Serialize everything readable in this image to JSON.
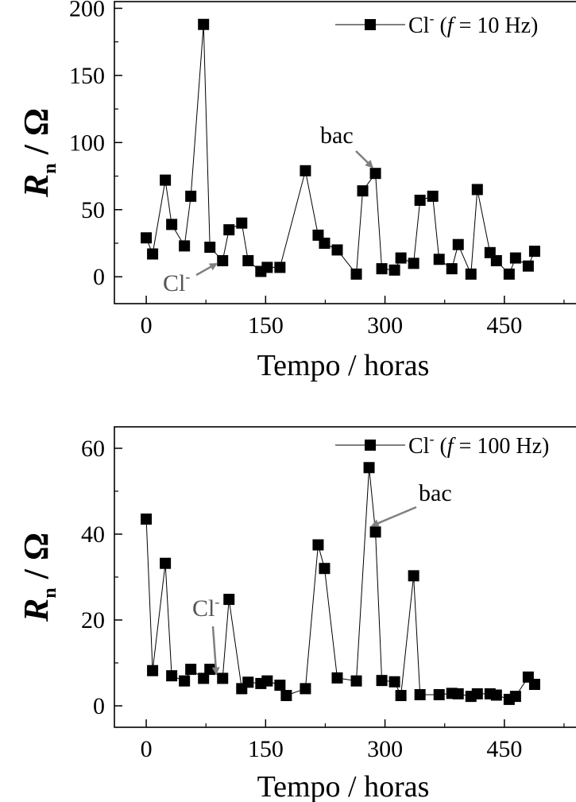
{
  "chart_data": [
    {
      "type": "line",
      "xlabel": "Tempo / horas",
      "ylabel": {
        "symbol": "R",
        "subscript": "n",
        "rest": " / Ω"
      },
      "xlim": [
        -40,
        540
      ],
      "ylim": [
        -20,
        205
      ],
      "xticks": [
        0,
        150,
        300,
        450
      ],
      "yticks": [
        0,
        50,
        100,
        150,
        200
      ],
      "legend": {
        "label_pre": "Cl",
        "label_sup": "-",
        "label_f": "f",
        "label_post": " = 10 Hz)",
        "placement": "top-right"
      },
      "series": [
        {
          "name": "Cl⁻ (f = 10 Hz)",
          "marker": "square",
          "x": [
            0,
            8,
            24,
            32,
            48,
            56,
            72,
            80,
            96,
            104,
            120,
            128,
            144,
            152,
            168,
            200,
            216,
            224,
            240,
            264,
            272,
            288,
            296,
            312,
            320,
            336,
            344,
            360,
            368,
            384,
            392,
            408,
            416,
            432,
            440,
            456,
            464,
            480,
            488
          ],
          "y": [
            29,
            17,
            72,
            39,
            23,
            60,
            188,
            22,
            12,
            35,
            40,
            12,
            4,
            7,
            7,
            79,
            31,
            25,
            20,
            2,
            64,
            77,
            6,
            5,
            14,
            10,
            57,
            60,
            13,
            6,
            24,
            2,
            65,
            18,
            12,
            2,
            14,
            8,
            19
          ]
        }
      ],
      "annotations": [
        {
          "text": "bac",
          "target": [
            288,
            77
          ]
        },
        {
          "text_pre": "Cl",
          "text_sup": "-",
          "target": [
            96,
            12
          ]
        }
      ]
    },
    {
      "type": "line",
      "xlabel": "Tempo / horas",
      "ylabel": {
        "symbol": "R",
        "subscript": "n",
        "rest": " / Ω"
      },
      "xlim": [
        -40,
        540
      ],
      "ylim": [
        -5,
        65
      ],
      "xticks": [
        0,
        150,
        300,
        450
      ],
      "yticks": [
        0,
        20,
        40,
        60
      ],
      "legend": {
        "label_pre": "Cl",
        "label_sup": "-",
        "label_f": "f",
        "label_post": " = 100 Hz)",
        "placement": "top-right"
      },
      "series": [
        {
          "name": "Cl⁻ (f = 100 Hz)",
          "marker": "square",
          "x": [
            0,
            8,
            24,
            32,
            48,
            56,
            72,
            80,
            96,
            104,
            120,
            128,
            144,
            152,
            168,
            176,
            200,
            216,
            224,
            240,
            264,
            280,
            288,
            296,
            312,
            320,
            336,
            344,
            368,
            384,
            392,
            408,
            416,
            432,
            440,
            456,
            464,
            480,
            488
          ],
          "y": [
            43.5,
            8.2,
            33.2,
            7.0,
            5.8,
            8.5,
            6.4,
            8.5,
            6.4,
            24.8,
            4.0,
            5.5,
            5.2,
            5.8,
            4.8,
            2.4,
            4.0,
            37.5,
            32.0,
            6.5,
            5.8,
            55.5,
            40.5,
            5.9,
            5.6,
            2.4,
            30.3,
            2.6,
            2.6,
            2.9,
            2.8,
            2.2,
            2.8,
            2.8,
            2.5,
            1.5,
            2.2,
            6.7,
            5.0
          ]
        }
      ],
      "annotations": [
        {
          "text": "bac",
          "target": [
            288,
            40.5
          ]
        },
        {
          "text_pre": "Cl",
          "text_sup": "-",
          "target": [
            96,
            6.4
          ]
        }
      ]
    }
  ]
}
